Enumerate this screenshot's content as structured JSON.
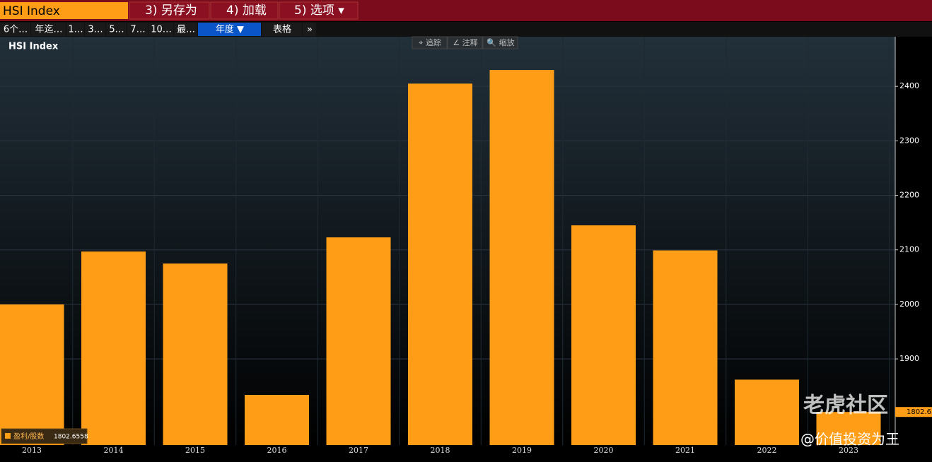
{
  "toolbar": {
    "security": "HSI Index",
    "actions": [
      "3) 另存为",
      "4) 加载",
      "5) 选项 ▾"
    ]
  },
  "periods": [
    "6个…",
    "年迄…",
    "1…",
    "3…",
    "5…",
    "7…",
    "10…",
    "最…",
    "年度 ▼",
    "表格",
    "»"
  ],
  "chart_tools": [
    "⌖ 追踪",
    "∠ 注释",
    "🔍 缩放"
  ],
  "watermark": {
    "brand": "老虎社区",
    "author": "@价值投资为王"
  },
  "chart_data": {
    "type": "bar",
    "title": "HSI Index",
    "categories": [
      "2013",
      "2014",
      "2015",
      "2016",
      "2017",
      "2018",
      "2019",
      "2020",
      "2021",
      "2022",
      "2023"
    ],
    "series": [
      {
        "name": "盈利/股数",
        "color": "#ff9e16",
        "values": [
          2000,
          2097,
          2075,
          1834,
          2123,
          2405,
          2430,
          2145,
          2099,
          1862,
          1802.6558
        ]
      }
    ],
    "ylim": [
      1742,
      2491
    ],
    "yticks": [
      1900,
      2000,
      2100,
      2200,
      2300,
      2400
    ],
    "grid": true
  }
}
